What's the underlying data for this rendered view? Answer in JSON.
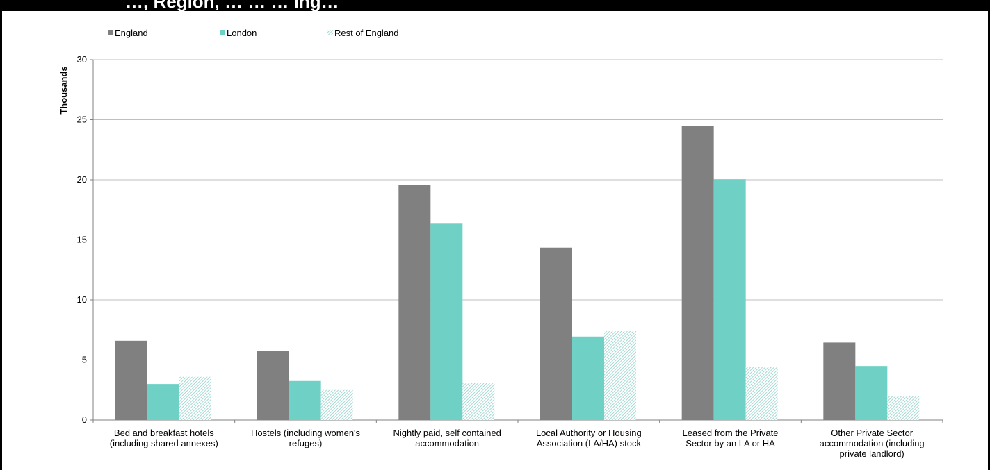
{
  "title_fragment": "…, Region, … … … ing…",
  "chart_data": {
    "type": "bar",
    "ylabel": "Thousands",
    "xlabel": "",
    "ylim": [
      0,
      30
    ],
    "yticks": [
      0,
      5,
      10,
      15,
      20,
      25,
      30
    ],
    "grid": true,
    "legend_position": "top-left",
    "categories": [
      [
        "Bed and breakfast hotels",
        "(including shared annexes)"
      ],
      [
        "Hostels (including women's",
        "refuges)"
      ],
      [
        "Nightly paid, self contained",
        "accommodation"
      ],
      [
        "Local Authority or Housing",
        "Association (LA/HA) stock"
      ],
      [
        "Leased from the Private",
        "Sector by an  LA or HA"
      ],
      [
        "Other Private Sector",
        "accommodation (including",
        "private landlord)"
      ]
    ],
    "series": [
      {
        "name": "England",
        "color": "#808080",
        "pattern": "solid",
        "values": [
          6.6,
          5.75,
          19.55,
          14.35,
          24.5,
          6.45
        ]
      },
      {
        "name": "London",
        "color": "#6fd1c6",
        "pattern": "solid",
        "values": [
          3.0,
          3.25,
          16.4,
          6.95,
          20.05,
          4.5
        ]
      },
      {
        "name": "Rest of England",
        "color": "#8fcfc8",
        "pattern": "diagonal-hatch",
        "values": [
          3.6,
          2.5,
          3.1,
          7.4,
          4.45,
          2.0
        ]
      }
    ]
  }
}
